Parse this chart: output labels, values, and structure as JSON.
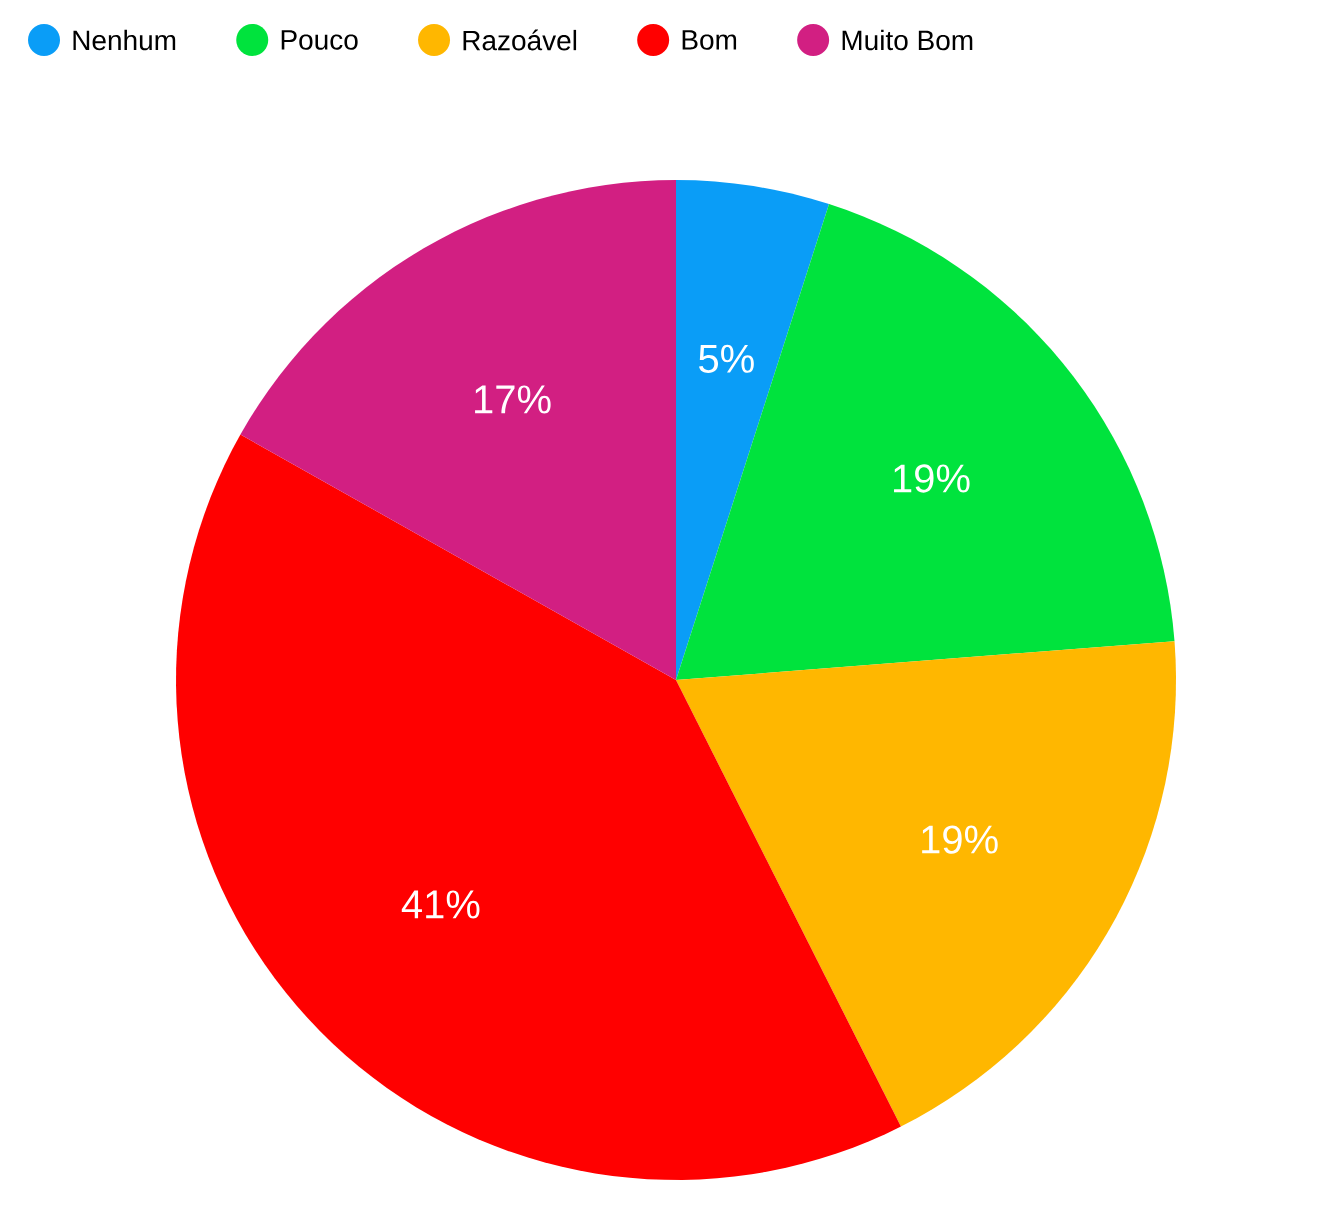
{
  "chart_data": {
    "type": "pie",
    "categories": [
      "Nenhum",
      "Pouco",
      "Razoável",
      "Bom",
      "Muito Bom"
    ],
    "values": [
      5,
      19,
      19,
      41,
      17
    ],
    "colors": [
      "#0a9df7",
      "#00e33d",
      "#ffb700",
      "#ff0000",
      "#d21f82"
    ],
    "value_labels": [
      "5%",
      "19%",
      "19%",
      "41%",
      "17%"
    ],
    "legend": "top"
  }
}
